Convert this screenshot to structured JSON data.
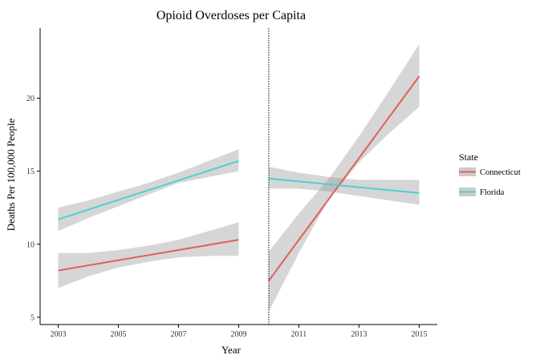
{
  "chart_data": {
    "type": "line",
    "title": "Opioid Overdoses per Capita",
    "xlabel": "Year",
    "ylabel": "Deaths Per 100,000 People",
    "xlim": [
      2002.4,
      2015.6
    ],
    "ylim": [
      4.5,
      24.8
    ],
    "x_ticks": [
      2003,
      2005,
      2007,
      2009,
      2011,
      2013,
      2015
    ],
    "y_ticks": [
      5,
      10,
      15,
      20
    ],
    "vline": 2010,
    "legend": {
      "title": "State",
      "position": "right"
    },
    "grid": false,
    "series": [
      {
        "name": "Connecticut",
        "color": "#E0605A",
        "segments": [
          {
            "x": [
              2003,
              2009
            ],
            "y": [
              8.2,
              10.3
            ],
            "ci": {
              "x": [
                2003,
                2004,
                2005,
                2006,
                2007,
                2008,
                2009
              ],
              "lower": [
                7.0,
                7.8,
                8.4,
                8.8,
                9.1,
                9.2,
                9.2
              ],
              "upper": [
                9.4,
                9.4,
                9.6,
                9.9,
                10.3,
                10.9,
                11.5
              ]
            }
          },
          {
            "x": [
              2010,
              2015
            ],
            "y": [
              7.5,
              21.5
            ],
            "ci": {
              "x": [
                2010,
                2011,
                2012,
                2013,
                2014,
                2015
              ],
              "lower": [
                5.4,
                9.4,
                13.1,
                15.6,
                17.6,
                19.4
              ],
              "upper": [
                9.5,
                12.1,
                14.5,
                17.4,
                20.5,
                23.7
              ]
            }
          }
        ]
      },
      {
        "name": "Florida",
        "color": "#4DD0D8",
        "segments": [
          {
            "x": [
              2003,
              2009
            ],
            "y": [
              11.7,
              15.7
            ],
            "ci": {
              "x": [
                2003,
                2004,
                2005,
                2006,
                2007,
                2008,
                2009
              ],
              "lower": [
                10.9,
                11.8,
                12.6,
                13.4,
                14.2,
                14.6,
                15.0
              ],
              "upper": [
                12.5,
                13.0,
                13.6,
                14.2,
                14.9,
                15.7,
                16.5
              ]
            }
          },
          {
            "x": [
              2010,
              2015
            ],
            "y": [
              14.5,
              13.5
            ],
            "ci": {
              "x": [
                2010,
                2011,
                2012,
                2013,
                2014,
                2015
              ],
              "lower": [
                13.8,
                13.8,
                13.6,
                13.3,
                13.0,
                12.7
              ],
              "upper": [
                15.3,
                14.9,
                14.6,
                14.4,
                14.4,
                14.4
              ]
            }
          }
        ]
      }
    ]
  }
}
